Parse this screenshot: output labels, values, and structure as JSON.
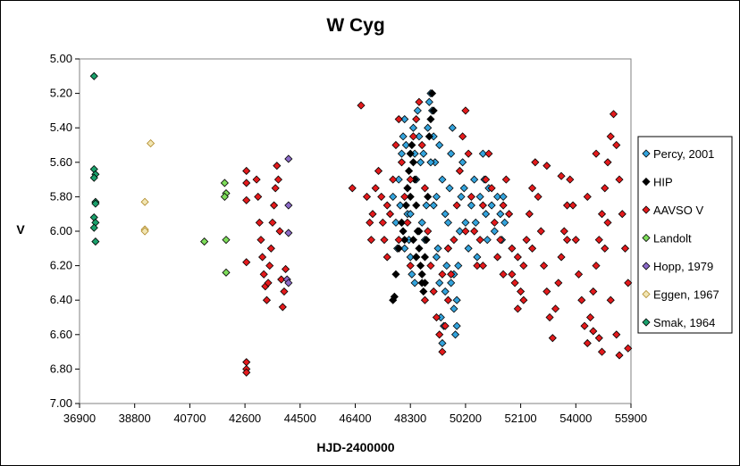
{
  "chart_data": {
    "type": "scatter",
    "title": "W Cyg",
    "xlabel": "HJD-2400000",
    "ylabel": "V",
    "xlim": [
      36900,
      55900
    ],
    "ylim": [
      5.0,
      7.0
    ],
    "y_inverted": true,
    "x_ticks": [
      "36900",
      "38800",
      "40700",
      "42600",
      "44500",
      "46400",
      "48300",
      "50200",
      "52100",
      "54000",
      "55900"
    ],
    "y_ticks": [
      "5.00",
      "5.20",
      "5.40",
      "5.60",
      "5.80",
      "6.00",
      "6.20",
      "6.40",
      "6.60",
      "6.80",
      "7.00"
    ],
    "grid": false,
    "legend_position": "right",
    "series": [
      {
        "name": "Percy, 2001",
        "color": "#33a3dc",
        "points": [
          [
            47700,
            5.8
          ],
          [
            47900,
            5.7
          ],
          [
            48000,
            5.55
          ],
          [
            48050,
            5.45
          ],
          [
            48100,
            5.35
          ],
          [
            48150,
            5.5
          ],
          [
            48200,
            5.9
          ],
          [
            48250,
            6.05
          ],
          [
            48300,
            6.15
          ],
          [
            48350,
            6.25
          ],
          [
            48100,
            6.1
          ],
          [
            48000,
            5.95
          ],
          [
            47950,
            5.85
          ],
          [
            48400,
            5.4
          ],
          [
            48450,
            5.55
          ],
          [
            48500,
            5.7
          ],
          [
            48550,
            5.3
          ],
          [
            48600,
            5.45
          ],
          [
            48650,
            5.6
          ],
          [
            48700,
            5.95
          ],
          [
            48800,
            6.05
          ],
          [
            48850,
            5.85
          ],
          [
            48900,
            5.4
          ],
          [
            48950,
            5.25
          ],
          [
            49000,
            5.2
          ],
          [
            49050,
            5.3
          ],
          [
            49100,
            5.45
          ],
          [
            49150,
            5.6
          ],
          [
            49200,
            5.8
          ],
          [
            49250,
            6.1
          ],
          [
            49300,
            6.3
          ],
          [
            49350,
            6.5
          ],
          [
            49400,
            6.65
          ],
          [
            49450,
            6.55
          ],
          [
            49500,
            6.35
          ],
          [
            49550,
            6.2
          ],
          [
            49600,
            5.95
          ],
          [
            49650,
            5.75
          ],
          [
            49700,
            5.55
          ],
          [
            49750,
            5.4
          ],
          [
            49300,
            5.5
          ],
          [
            49400,
            5.7
          ],
          [
            49500,
            5.9
          ],
          [
            49600,
            6.1
          ],
          [
            49700,
            6.3
          ],
          [
            49800,
            6.45
          ],
          [
            49850,
            6.6
          ],
          [
            49900,
            6.4
          ],
          [
            49950,
            6.2
          ],
          [
            50000,
            6.0
          ],
          [
            50050,
            5.8
          ],
          [
            50100,
            5.6
          ],
          [
            50150,
            5.75
          ],
          [
            50200,
            5.95
          ],
          [
            50300,
            6.1
          ],
          [
            50400,
            5.85
          ],
          [
            50500,
            5.7
          ],
          [
            50550,
            5.95
          ],
          [
            50600,
            6.15
          ],
          [
            50700,
            5.8
          ],
          [
            50800,
            5.55
          ],
          [
            50850,
            5.7
          ],
          [
            50900,
            5.9
          ],
          [
            50950,
            6.05
          ],
          [
            51000,
            5.75
          ],
          [
            51100,
            5.85
          ],
          [
            51200,
            6.0
          ],
          [
            51300,
            5.8
          ],
          [
            51400,
            5.9
          ],
          [
            51450,
            6.05
          ],
          [
            51500,
            5.8
          ],
          [
            51550,
            5.95
          ],
          [
            49000,
            5.6
          ],
          [
            49100,
            5.85
          ],
          [
            49200,
            6.15
          ],
          [
            48200,
            5.75
          ],
          [
            48300,
            5.9
          ],
          [
            48750,
            5.55
          ],
          [
            49900,
            6.55
          ],
          [
            49800,
            6.25
          ],
          [
            48500,
            6.15
          ],
          [
            48450,
            6.3
          ],
          [
            47800,
            5.95
          ],
          [
            47850,
            6.1
          ]
        ]
      },
      {
        "name": "HIP",
        "color": "#000000",
        "points": [
          [
            47700,
            6.4
          ],
          [
            47750,
            6.38
          ],
          [
            47800,
            6.25
          ],
          [
            47900,
            6.1
          ],
          [
            48000,
            5.95
          ],
          [
            48050,
            6.0
          ],
          [
            48100,
            6.05
          ],
          [
            48150,
            5.85
          ],
          [
            48200,
            5.75
          ],
          [
            48250,
            5.65
          ],
          [
            48300,
            5.55
          ],
          [
            48350,
            5.5
          ],
          [
            48400,
            5.6
          ],
          [
            48450,
            5.7
          ],
          [
            48500,
            5.85
          ],
          [
            48550,
            6.0
          ],
          [
            48600,
            6.1
          ],
          [
            48650,
            6.2
          ],
          [
            48700,
            6.25
          ],
          [
            48750,
            6.35
          ],
          [
            48800,
            6.3
          ],
          [
            48850,
            6.05
          ],
          [
            48900,
            5.8
          ],
          [
            48950,
            5.45
          ],
          [
            49000,
            5.35
          ],
          [
            49050,
            5.2
          ],
          [
            49100,
            5.3
          ],
          [
            48300,
            5.8
          ],
          [
            48400,
            6.05
          ],
          [
            48500,
            6.15
          ],
          [
            48600,
            6.0
          ],
          [
            48700,
            6.3
          ],
          [
            48800,
            6.15
          ]
        ]
      },
      {
        "name": "AAVSO V",
        "color": "#e31a1c",
        "points": [
          [
            42650,
            5.65
          ],
          [
            42650,
            5.72
          ],
          [
            42650,
            5.82
          ],
          [
            42650,
            6.18
          ],
          [
            42650,
            6.76
          ],
          [
            42650,
            6.8
          ],
          [
            42650,
            6.82
          ],
          [
            43000,
            5.7
          ],
          [
            43050,
            5.8
          ],
          [
            43100,
            5.95
          ],
          [
            43150,
            6.05
          ],
          [
            43200,
            6.15
          ],
          [
            43250,
            6.25
          ],
          [
            43300,
            6.32
          ],
          [
            43350,
            6.4
          ],
          [
            43400,
            6.3
          ],
          [
            43450,
            6.2
          ],
          [
            43500,
            6.1
          ],
          [
            43550,
            5.95
          ],
          [
            43600,
            5.85
          ],
          [
            43650,
            5.75
          ],
          [
            43700,
            5.62
          ],
          [
            43750,
            5.7
          ],
          [
            43800,
            6.0
          ],
          [
            43850,
            6.28
          ],
          [
            43900,
            6.44
          ],
          [
            43950,
            6.35
          ],
          [
            44000,
            6.22
          ],
          [
            46300,
            5.75
          ],
          [
            46600,
            5.27
          ],
          [
            46800,
            5.8
          ],
          [
            46900,
            5.95
          ],
          [
            46950,
            6.05
          ],
          [
            47000,
            5.9
          ],
          [
            47100,
            5.75
          ],
          [
            47200,
            5.65
          ],
          [
            47300,
            5.8
          ],
          [
            47350,
            5.95
          ],
          [
            47400,
            6.05
          ],
          [
            47500,
            6.15
          ],
          [
            47600,
            5.9
          ],
          [
            47700,
            5.7
          ],
          [
            47800,
            5.5
          ],
          [
            47900,
            5.35
          ],
          [
            48000,
            5.6
          ],
          [
            48100,
            5.8
          ],
          [
            48200,
            5.95
          ],
          [
            48300,
            5.7
          ],
          [
            48400,
            5.45
          ],
          [
            48500,
            5.35
          ],
          [
            48600,
            5.25
          ],
          [
            48700,
            5.5
          ],
          [
            48800,
            5.75
          ],
          [
            48900,
            6.0
          ],
          [
            49000,
            6.2
          ],
          [
            49100,
            6.35
          ],
          [
            49200,
            6.5
          ],
          [
            49300,
            6.6
          ],
          [
            49400,
            6.7
          ],
          [
            49500,
            6.55
          ],
          [
            49600,
            6.4
          ],
          [
            49700,
            6.25
          ],
          [
            49800,
            6.05
          ],
          [
            49900,
            5.85
          ],
          [
            50000,
            5.65
          ],
          [
            50100,
            5.45
          ],
          [
            50200,
            5.3
          ],
          [
            50300,
            5.55
          ],
          [
            50400,
            5.8
          ],
          [
            50500,
            6.0
          ],
          [
            50600,
            6.2
          ],
          [
            50700,
            6.05
          ],
          [
            50800,
            5.85
          ],
          [
            50900,
            5.7
          ],
          [
            51000,
            5.55
          ],
          [
            51100,
            5.75
          ],
          [
            51200,
            5.95
          ],
          [
            51300,
            6.15
          ],
          [
            51400,
            6.05
          ],
          [
            51500,
            5.85
          ],
          [
            51600,
            5.7
          ],
          [
            51700,
            5.9
          ],
          [
            51800,
            6.1
          ],
          [
            51900,
            6.3
          ],
          [
            52000,
            6.45
          ],
          [
            52100,
            6.35
          ],
          [
            52200,
            6.2
          ],
          [
            52300,
            6.05
          ],
          [
            52400,
            5.9
          ],
          [
            52500,
            5.75
          ],
          [
            52600,
            5.6
          ],
          [
            52700,
            5.8
          ],
          [
            52800,
            6.0
          ],
          [
            52900,
            6.2
          ],
          [
            53000,
            6.35
          ],
          [
            53100,
            6.5
          ],
          [
            53200,
            6.62
          ],
          [
            53300,
            6.45
          ],
          [
            53400,
            6.3
          ],
          [
            53500,
            6.15
          ],
          [
            53600,
            6.0
          ],
          [
            53700,
            5.85
          ],
          [
            53800,
            5.7
          ],
          [
            53900,
            5.85
          ],
          [
            54000,
            6.05
          ],
          [
            54100,
            6.25
          ],
          [
            54200,
            6.4
          ],
          [
            54300,
            6.55
          ],
          [
            54400,
            6.65
          ],
          [
            54500,
            6.5
          ],
          [
            54600,
            6.35
          ],
          [
            54700,
            6.2
          ],
          [
            54800,
            6.05
          ],
          [
            54900,
            5.9
          ],
          [
            55000,
            5.75
          ],
          [
            55100,
            5.6
          ],
          [
            55200,
            5.45
          ],
          [
            55300,
            5.32
          ],
          [
            55400,
            5.5
          ],
          [
            55500,
            5.7
          ],
          [
            55600,
            5.9
          ],
          [
            55700,
            6.1
          ],
          [
            55800,
            6.3
          ],
          [
            55800,
            6.68
          ],
          [
            55500,
            6.72
          ],
          [
            55400,
            6.6
          ],
          [
            54900,
            6.7
          ],
          [
            54800,
            6.62
          ],
          [
            54600,
            6.58
          ],
          [
            52200,
            6.4
          ],
          [
            52000,
            6.15
          ],
          [
            51800,
            6.25
          ],
          [
            53500,
            5.68
          ],
          [
            53700,
            6.05
          ],
          [
            54400,
            5.8
          ],
          [
            54700,
            5.55
          ],
          [
            55000,
            6.1
          ],
          [
            55200,
            6.4
          ],
          [
            55100,
            5.95
          ],
          [
            53000,
            5.62
          ],
          [
            52500,
            6.1
          ],
          [
            51500,
            6.25
          ],
          [
            50800,
            6.2
          ],
          [
            50200,
            6.0
          ],
          [
            49600,
            6.1
          ],
          [
            49400,
            6.25
          ],
          [
            48800,
            6.4
          ],
          [
            48300,
            6.2
          ],
          [
            47900,
            6.05
          ],
          [
            47500,
            5.85
          ]
        ]
      },
      {
        "name": "Landolt",
        "color": "#7ddc5a",
        "points": [
          [
            41200,
            6.06
          ],
          [
            41900,
            5.72
          ],
          [
            41950,
            5.78
          ],
          [
            41900,
            5.8
          ],
          [
            41950,
            6.05
          ],
          [
            41950,
            6.24
          ]
        ]
      },
      {
        "name": "Hopp, 1979",
        "color": "#8c6bc8",
        "points": [
          [
            44100,
            5.58
          ],
          [
            44100,
            5.85
          ],
          [
            44100,
            6.01
          ],
          [
            44050,
            6.28
          ],
          [
            44100,
            6.3
          ]
        ]
      },
      {
        "name": "Eggen, 1967",
        "color": "#f2e6b3",
        "points": [
          [
            39350,
            5.49
          ],
          [
            39150,
            5.83
          ],
          [
            39150,
            5.99
          ],
          [
            39150,
            6.0
          ]
        ]
      },
      {
        "name": "Smak, 1964",
        "color": "#1aa06b",
        "points": [
          [
            37400,
            5.1
          ],
          [
            37400,
            5.64
          ],
          [
            37450,
            5.67
          ],
          [
            37400,
            5.69
          ],
          [
            37450,
            5.83
          ],
          [
            37450,
            5.84
          ],
          [
            37400,
            5.92
          ],
          [
            37450,
            5.95
          ],
          [
            37400,
            5.98
          ],
          [
            37450,
            6.06
          ]
        ]
      }
    ]
  }
}
